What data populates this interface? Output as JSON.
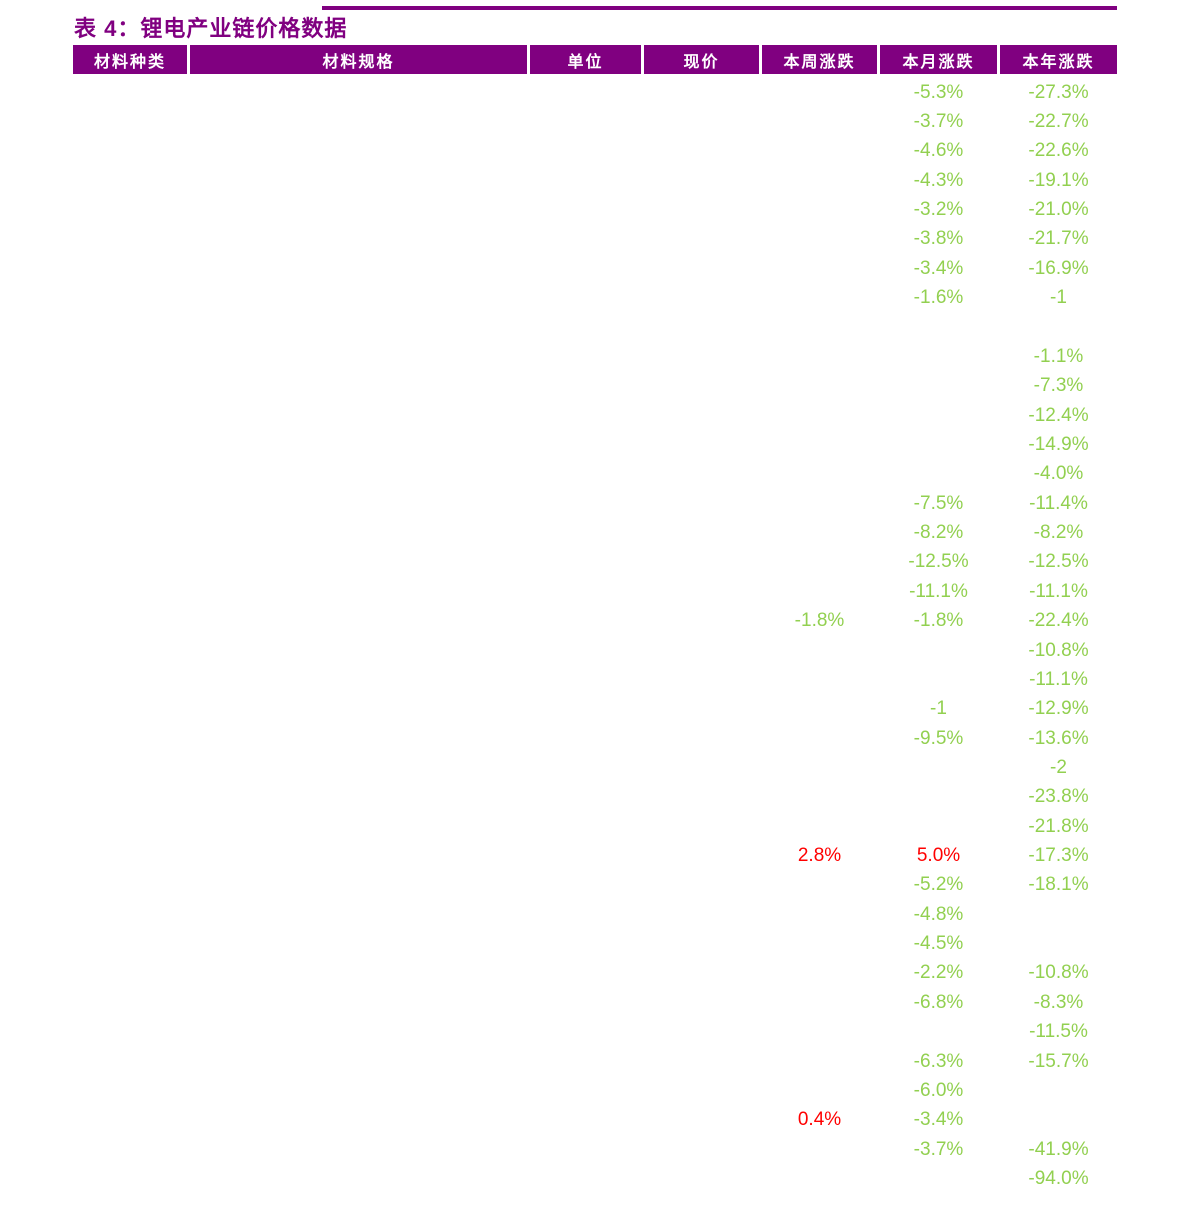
{
  "table": {
    "title": "表 4：锂电产业链价格数据",
    "colors": {
      "purple": "#800080",
      "green": "#92D050",
      "red": "#FF0000",
      "header_text": "#FFFFFF",
      "background": "#FFFFFF"
    },
    "columns": [
      "材料种类",
      "材料规格",
      "单位",
      "现价",
      "本周涨跌",
      "本月涨跌",
      "本年涨跌"
    ],
    "rows": [
      {
        "month": "-5.3%",
        "year": "-27.3%"
      },
      {
        "month": "-3.7%",
        "year": "-22.7%"
      },
      {
        "month": "-4.6%",
        "year": "-22.6%"
      },
      {
        "month": "-4.3%",
        "year": "-19.1%"
      },
      {
        "month": "-3.2%",
        "year": "-21.0%"
      },
      {
        "month": "-3.8%",
        "year": "-21.7%"
      },
      {
        "month": "-3.4%",
        "year": "-16.9%"
      },
      {
        "month": "-1.6%",
        "year": "-1"
      },
      {},
      {
        "year": "-1.1%"
      },
      {
        "year": "-7.3%"
      },
      {
        "year": "-12.4%"
      },
      {
        "year": "-14.9%"
      },
      {
        "year": "-4.0%"
      },
      {
        "month": "-7.5%",
        "year": "-11.4%"
      },
      {
        "month": "-8.2%",
        "year": "-8.2%"
      },
      {
        "month": "-12.5%",
        "year": "-12.5%"
      },
      {
        "month": "-11.1%",
        "year": "-11.1%"
      },
      {
        "week": "-1.8%",
        "month": "-1.8%",
        "year": "-22.4%"
      },
      {
        "year": "-10.8%"
      },
      {
        "year": "-11.1%"
      },
      {
        "month": "-1",
        "year": "-12.9%"
      },
      {
        "month": "-9.5%",
        "year": "-13.6%"
      },
      {
        "year": "-2"
      },
      {
        "year": "-23.8%"
      },
      {
        "year": "-21.8%"
      },
      {
        "week": "2.8%",
        "week_color": "red",
        "month": "5.0%",
        "month_color": "red",
        "year": "-17.3%"
      },
      {
        "month": "-5.2%",
        "year": "-18.1%"
      },
      {
        "month": "-4.8%"
      },
      {
        "month": "-4.5%"
      },
      {
        "month": "-2.2%",
        "year": "-10.8%"
      },
      {
        "month": "-6.8%",
        "year": "-8.3%"
      },
      {
        "year": "-11.5%"
      },
      {
        "month": "-6.3%",
        "year": "-15.7%"
      },
      {
        "month": "-6.0%"
      },
      {
        "week": "0.4%",
        "week_color": "red",
        "month": "-3.4%"
      },
      {
        "month": "-3.7%",
        "year": "-41.9%"
      },
      {
        "year": "-94.0%"
      }
    ]
  }
}
